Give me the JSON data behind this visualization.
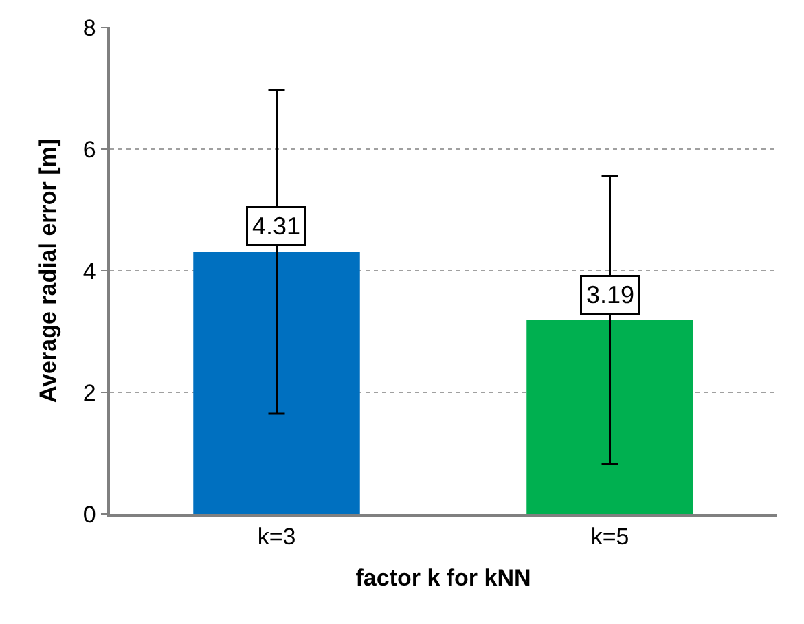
{
  "chart_data": {
    "type": "bar",
    "xlabel": "factor k for kNN",
    "ylabel": "Average radial error [m]",
    "categories": [
      "k=3",
      "k=5"
    ],
    "values": [
      4.31,
      3.19
    ],
    "colors": [
      "#0070c0",
      "#00b050"
    ],
    "errors": [
      2.66,
      2.37
    ],
    "data_labels": true,
    "ylim": [
      0,
      8
    ],
    "yticks": [
      0,
      2,
      4,
      6,
      8
    ],
    "grid": "y",
    "legend": false
  }
}
